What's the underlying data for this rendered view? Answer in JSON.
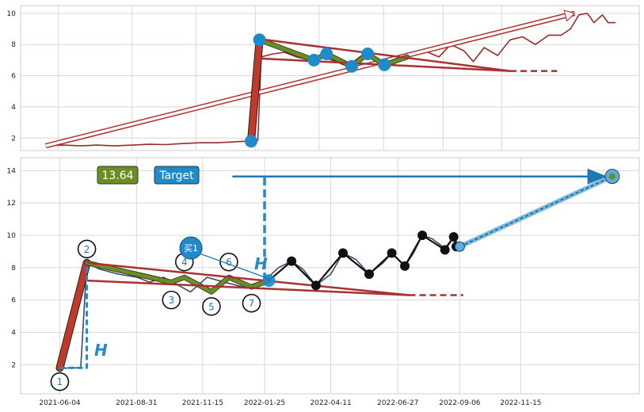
{
  "chart_data": [
    {
      "type": "line",
      "panel": "top",
      "ylim": [
        1.2,
        10.5
      ],
      "yticks": [
        2,
        4,
        6,
        8,
        10
      ],
      "grid": true,
      "series": [
        {
          "kind": "price",
          "color": "#9b2b2b",
          "points": [
            [
              "2021-05-20",
              1.5
            ],
            [
              "2021-06-10",
              1.55
            ],
            [
              "2021-07-01",
              1.5
            ],
            [
              "2021-07-20",
              1.55
            ],
            [
              "2021-08-10",
              1.5
            ],
            [
              "2021-09-01",
              1.55
            ],
            [
              "2021-09-20",
              1.6
            ],
            [
              "2021-10-10",
              1.58
            ],
            [
              "2021-11-01",
              1.65
            ],
            [
              "2021-11-20",
              1.7
            ],
            [
              "2021-12-10",
              1.7
            ],
            [
              "2021-12-28",
              1.75
            ],
            [
              "2022-01-15",
              1.8
            ],
            [
              "2022-01-28",
              1.85
            ],
            [
              "2022-02-01",
              7.2
            ],
            [
              "2022-02-15",
              7.4
            ],
            [
              "2022-03-01",
              7.5
            ],
            [
              "2022-03-15",
              7.2
            ],
            [
              "2022-04-01",
              7.0
            ],
            [
              "2022-04-15",
              7.2
            ],
            [
              "2022-05-01",
              6.9
            ],
            [
              "2022-05-15",
              6.6
            ],
            [
              "2022-06-01",
              7.3
            ],
            [
              "2022-06-15",
              7.1
            ],
            [
              "2022-07-01",
              6.7
            ],
            [
              "2022-07-15",
              7.0
            ],
            [
              "2022-08-01",
              7.3
            ],
            [
              "2022-08-15",
              7.6
            ],
            [
              "2022-09-01",
              7.2
            ],
            [
              "2022-09-15",
              8.0
            ],
            [
              "2022-10-01",
              7.6
            ],
            [
              "2022-10-12",
              6.9
            ],
            [
              "2022-10-25",
              7.8
            ],
            [
              "2022-11-10",
              7.3
            ],
            [
              "2022-11-25",
              8.3
            ],
            [
              "2022-12-10",
              8.5
            ],
            [
              "2022-12-25",
              8.0
            ],
            [
              "2023-01-10",
              8.6
            ],
            [
              "2023-01-25",
              8.6
            ],
            [
              "2023-02-05",
              9.0
            ],
            [
              "2023-02-15",
              9.9
            ],
            [
              "2023-02-25",
              10.0
            ],
            [
              "2023-03-05",
              9.4
            ],
            [
              "2023-03-15",
              9.9
            ],
            [
              "2023-03-22",
              9.4
            ],
            [
              "2023-03-30",
              9.4
            ]
          ]
        },
        {
          "kind": "trend-arrow",
          "color": "#e8a0a0",
          "points": [
            [
              "2021-05-20",
              1.5
            ],
            [
              "2023-02-10",
              10.0
            ]
          ]
        },
        {
          "kind": "impulse-leg",
          "color": "#c0392b",
          "points": [
            [
              "2022-01-20",
              1.8
            ],
            [
              "2022-01-30",
              8.3
            ]
          ]
        },
        {
          "kind": "wave",
          "color": "#6b8e23",
          "points": [
            [
              "2022-01-30",
              8.3
            ],
            [
              "2022-04-05",
              7.0
            ],
            [
              "2022-04-20",
              7.4
            ],
            [
              "2022-05-20",
              6.6
            ],
            [
              "2022-06-08",
              7.4
            ],
            [
              "2022-06-28",
              6.7
            ],
            [
              "2022-07-25",
              7.2
            ]
          ]
        },
        {
          "kind": "channel-upper",
          "color": "#a83232",
          "points": [
            [
              "2022-01-30",
              8.35
            ],
            [
              "2022-11-25",
              6.3
            ]
          ]
        },
        {
          "kind": "channel-lower",
          "color": "#a83232",
          "points": [
            [
              "2022-02-01",
              7.1
            ],
            [
              "2022-11-25",
              6.3
            ]
          ]
        },
        {
          "kind": "channel-extension",
          "style": "dashed",
          "color": "#a83232",
          "points": [
            [
              "2022-11-25",
              6.3
            ],
            [
              "2023-01-20",
              6.3
            ]
          ]
        }
      ],
      "markers": {
        "color": "#1f8bc8",
        "points": [
          [
            "2022-01-20",
            1.8
          ],
          [
            "2022-01-30",
            8.3
          ],
          [
            "2022-04-05",
            7.0
          ],
          [
            "2022-04-20",
            7.4
          ],
          [
            "2022-05-20",
            6.6
          ],
          [
            "2022-06-08",
            7.4
          ],
          [
            "2022-06-28",
            6.7
          ]
        ]
      }
    },
    {
      "type": "line",
      "panel": "bottom",
      "ylim": [
        0.2,
        14.8
      ],
      "yticks": [
        2,
        4,
        6,
        8,
        10,
        12,
        14
      ],
      "xticks": [
        "2021-06-04",
        "2021-08-31",
        "2021-11-15",
        "2022-01-25",
        "2022-04-11",
        "2022-06-27",
        "2022-09-06",
        "2022-11-15"
      ],
      "grid": true,
      "series": [
        {
          "kind": "price",
          "color": "#3a4a6b",
          "points": [
            [
              "2021-06-01",
              1.75
            ],
            [
              "2021-06-15",
              1.8
            ],
            [
              "2021-06-28",
              1.8
            ],
            [
              "2021-07-05",
              8.3
            ],
            [
              "2021-07-20",
              7.9
            ],
            [
              "2021-08-10",
              7.6
            ],
            [
              "2021-09-01",
              7.4
            ],
            [
              "2021-09-15",
              7.1
            ],
            [
              "2021-10-01",
              7.4
            ],
            [
              "2021-10-15",
              7.0
            ],
            [
              "2021-11-01",
              6.5
            ],
            [
              "2021-11-20",
              7.4
            ],
            [
              "2021-12-10",
              7.1
            ],
            [
              "2022-01-01",
              6.8
            ],
            [
              "2022-01-25",
              7.2
            ],
            [
              "2022-02-10",
              8.0
            ],
            [
              "2022-02-25",
              8.4
            ],
            [
              "2022-03-10",
              7.9
            ],
            [
              "2022-03-25",
              6.9
            ],
            [
              "2022-04-11",
              7.6
            ],
            [
              "2022-04-25",
              8.9
            ],
            [
              "2022-05-10",
              8.5
            ],
            [
              "2022-05-25",
              7.6
            ],
            [
              "2022-06-10",
              8.3
            ],
            [
              "2022-06-20",
              8.9
            ],
            [
              "2022-07-05",
              8.1
            ],
            [
              "2022-07-15",
              8.9
            ],
            [
              "2022-07-25",
              10.0
            ],
            [
              "2022-08-05",
              9.8
            ],
            [
              "2022-08-20",
              9.2
            ],
            [
              "2022-08-30",
              9.9
            ],
            [
              "2022-09-06",
              9.3
            ]
          ]
        },
        {
          "kind": "impulse-leg",
          "color": "#c0392b",
          "points": [
            [
              "2021-06-04",
              1.8
            ],
            [
              "2021-07-05",
              8.3
            ]
          ]
        },
        {
          "kind": "wave",
          "color": "#6b8e23",
          "points": [
            [
              "2021-07-05",
              8.3
            ],
            [
              "2021-10-10",
              7.1
            ],
            [
              "2021-10-25",
              7.4
            ],
            [
              "2021-11-25",
              6.5
            ],
            [
              "2021-12-15",
              7.4
            ],
            [
              "2022-01-10",
              6.8
            ],
            [
              "2022-01-30",
              7.2
            ]
          ]
        },
        {
          "kind": "channel-upper",
          "color": "#a83232",
          "points": [
            [
              "2021-07-05",
              8.3
            ],
            [
              "2022-07-10",
              6.3
            ]
          ]
        },
        {
          "kind": "channel-lower",
          "color": "#a83232",
          "points": [
            [
              "2021-07-05",
              7.2
            ],
            [
              "2022-07-10",
              6.3
            ]
          ]
        },
        {
          "kind": "channel-extension",
          "style": "dashed",
          "color": "#a83232",
          "points": [
            [
              "2022-07-10",
              6.3
            ],
            [
              "2022-09-10",
              6.3
            ]
          ]
        },
        {
          "kind": "height-measure-1",
          "style": "dashed",
          "color": "#1f8bc8",
          "points": [
            [
              "2021-06-04",
              1.8
            ],
            [
              "2021-07-05",
              1.8
            ],
            [
              "2021-07-05",
              8.3
            ]
          ]
        },
        {
          "kind": "height-measure-2",
          "style": "dashed",
          "color": "#1f8bc8",
          "points": [
            [
              "2022-01-25",
              7.2
            ],
            [
              "2022-01-25",
              13.64
            ]
          ]
        },
        {
          "kind": "target-line",
          "color": "#1f77b4",
          "points": [
            [
              "2021-12-20",
              13.64
            ],
            [
              "2023-02-20",
              13.64
            ]
          ]
        },
        {
          "kind": "projection",
          "color": "#5aaedc",
          "points": [
            [
              "2022-09-06",
              9.3
            ],
            [
              "2023-02-28",
              13.64
            ]
          ]
        },
        {
          "kind": "zigzag",
          "color": "#111111",
          "points": [
            [
              "2022-01-30",
              7.2
            ],
            [
              "2022-02-25",
              8.4
            ],
            [
              "2022-03-25",
              6.9
            ],
            [
              "2022-04-25",
              8.9
            ],
            [
              "2022-05-25",
              7.6
            ],
            [
              "2022-06-20",
              8.9
            ],
            [
              "2022-07-05",
              8.1
            ],
            [
              "2022-07-25",
              10.0
            ],
            [
              "2022-08-20",
              9.1
            ],
            [
              "2022-08-30",
              9.9
            ],
            [
              "2022-09-02",
              9.3
            ],
            [
              "2022-09-06",
              9.3
            ]
          ]
        }
      ],
      "wave_labels": [
        {
          "label": "1",
          "date": "2021-06-04",
          "value": 0.95
        },
        {
          "label": "2",
          "date": "2021-07-05",
          "value": 9.15
        },
        {
          "label": "3",
          "date": "2021-10-10",
          "value": 6.0
        },
        {
          "label": "4",
          "date": "2021-10-25",
          "value": 8.35
        },
        {
          "label": "5",
          "date": "2021-11-25",
          "value": 5.6
        },
        {
          "label": "6",
          "date": "2021-12-15",
          "value": 8.35
        },
        {
          "label": "7",
          "date": "2022-01-10",
          "value": 5.8
        }
      ],
      "annotations": {
        "height_label": "H",
        "value_box": "13.64",
        "target_box": "Target",
        "buy_label": "买1"
      }
    }
  ]
}
